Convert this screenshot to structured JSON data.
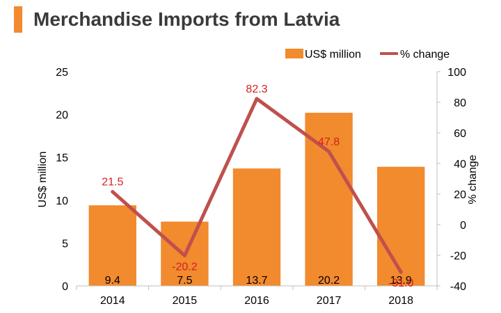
{
  "header": {
    "title": "Merchandise Imports from Latvia"
  },
  "colors": {
    "title_accent": "#f28a2e",
    "bar": "#f28a2e",
    "line": "#c0504d",
    "pct_label": "#d42020"
  },
  "chart_data": {
    "type": "bar",
    "title": "Merchandise Imports from Latvia",
    "categories": [
      "2014",
      "2015",
      "2016",
      "2017",
      "2018"
    ],
    "series": [
      {
        "name": "US$ million",
        "type": "bar",
        "axis": "left",
        "values": [
          9.4,
          7.5,
          13.7,
          20.2,
          13.9
        ],
        "labels": [
          "9.4",
          "7.5",
          "13.7",
          "20.2",
          "13.9"
        ]
      },
      {
        "name": "% change",
        "type": "line",
        "axis": "right",
        "values": [
          21.5,
          -20.2,
          82.3,
          47.8,
          -31.0
        ],
        "labels": [
          "21.5",
          "-20.2",
          "82.3",
          "47.8",
          "-31.0"
        ]
      }
    ],
    "ylabel": "US$ million",
    "y2label": "% change",
    "ylim": [
      0,
      25
    ],
    "y2lim": [
      -40,
      100
    ],
    "yticks": [
      "0",
      "5",
      "10",
      "15",
      "20",
      "25"
    ],
    "y2ticks": [
      "-40",
      "-20",
      "0",
      "20",
      "40",
      "60",
      "80",
      "100"
    ],
    "legend_position": "top-right",
    "grid": false
  }
}
